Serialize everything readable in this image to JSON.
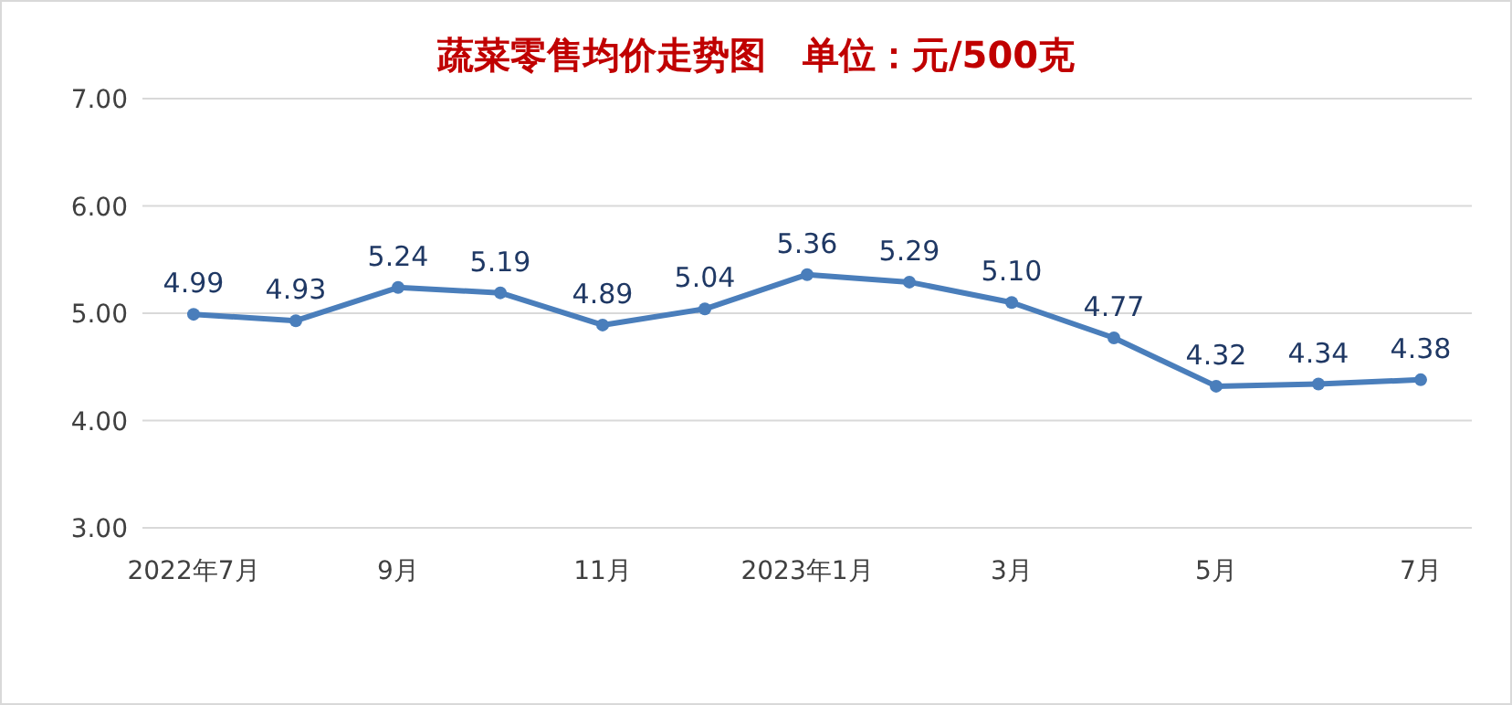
{
  "chart_data": {
    "type": "line",
    "title": "蔬菜零售均价走势图　单位：元/500克",
    "categories": [
      "2022年7月",
      null,
      "9月",
      null,
      "11月",
      null,
      "2023年1月",
      null,
      "3月",
      null,
      "5月",
      null,
      "7月"
    ],
    "series": [
      {
        "color": "#4a7ebb",
        "values": [
          4.99,
          4.93,
          5.24,
          5.19,
          4.89,
          5.04,
          5.36,
          5.29,
          5.1,
          4.77,
          4.32,
          4.34,
          4.38
        ],
        "value_labels": [
          "4.99",
          "4.93",
          "5.24",
          "5.19",
          "4.89",
          "5.04",
          "5.36",
          "5.29",
          "5.10",
          "4.77",
          "4.32",
          "4.34",
          "4.38"
        ]
      }
    ],
    "ylim": [
      3,
      7
    ],
    "yticks": [
      {
        "value": 3,
        "label": "3.00"
      },
      {
        "value": 4,
        "label": "4.00"
      },
      {
        "value": 5,
        "label": "5.00"
      },
      {
        "value": 6,
        "label": "6.00"
      },
      {
        "value": 7,
        "label": "7.00"
      }
    ],
    "grid": "y",
    "marker": "circle",
    "line_style": "solid"
  }
}
